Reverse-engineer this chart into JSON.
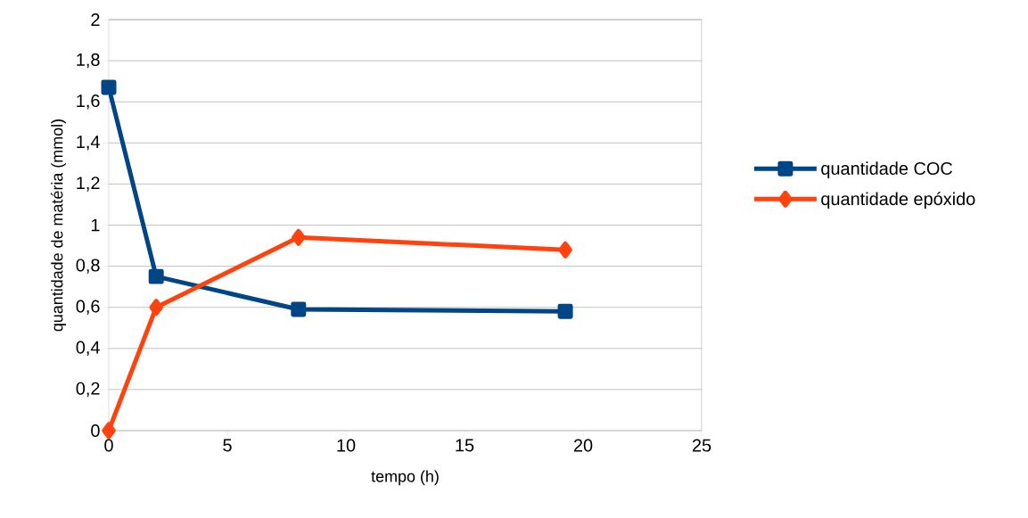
{
  "chart_data": {
    "type": "line",
    "xlabel": "tempo (h)",
    "ylabel": "quantidade de matéria (mmol)",
    "series": [
      {
        "name": "quantidade COC",
        "color": "#004586",
        "marker": "square",
        "x": [
          0,
          2,
          8,
          19.25
        ],
        "values": [
          1.67,
          0.75,
          0.59,
          0.58
        ]
      },
      {
        "name": "quantidade epóxido",
        "color": "#ff420e",
        "marker": "diamond",
        "x": [
          0,
          2,
          8,
          19.25
        ],
        "values": [
          0,
          0.6,
          0.94,
          0.88
        ]
      }
    ],
    "xlim": [
      0,
      25
    ],
    "ylim": [
      0,
      2
    ],
    "xticks": [
      0,
      5,
      10,
      15,
      20,
      25
    ],
    "yticks": [
      0,
      {
        "value": 0.2,
        "label": "0,2"
      },
      {
        "value": 0.4,
        "label": "0,4"
      },
      {
        "value": 0.6,
        "label": "0,6"
      },
      {
        "value": 0.8,
        "label": "0,8"
      },
      1,
      {
        "value": 1.2,
        "label": "1,2"
      },
      {
        "value": 1.4,
        "label": "1,4"
      },
      {
        "value": 1.6,
        "label": "1,6"
      },
      {
        "value": 1.8,
        "label": "1,8"
      },
      2
    ],
    "grid": "y",
    "legend": "right",
    "line_style": "solid"
  }
}
